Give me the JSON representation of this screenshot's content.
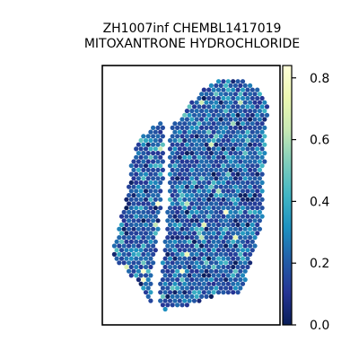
{
  "chart_data": {
    "type": "scatter",
    "subtype": "spatial spot map",
    "title_line1": "ZH1007inf CHEMBL1417019",
    "title_line2": "MITOXANTRONE HYDROCHLORIDE",
    "xlabel": "",
    "ylabel": "",
    "axis_ticks_visible": false,
    "grid": false,
    "colormap": "YlGnBu",
    "colorbar": {
      "range": [
        0,
        0.84
      ],
      "ticks": [
        0.0,
        0.2,
        0.4,
        0.6,
        0.8
      ],
      "tick_labels": [
        "0.0",
        "0.2",
        "0.4",
        "0.6",
        "0.8"
      ],
      "position": "right"
    },
    "value_distribution": {
      "typical_range": [
        0.1,
        0.3
      ],
      "max": 0.84
    },
    "tissue_regions": [
      {
        "name": "left-strip"
      },
      {
        "name": "right-block"
      }
    ]
  }
}
